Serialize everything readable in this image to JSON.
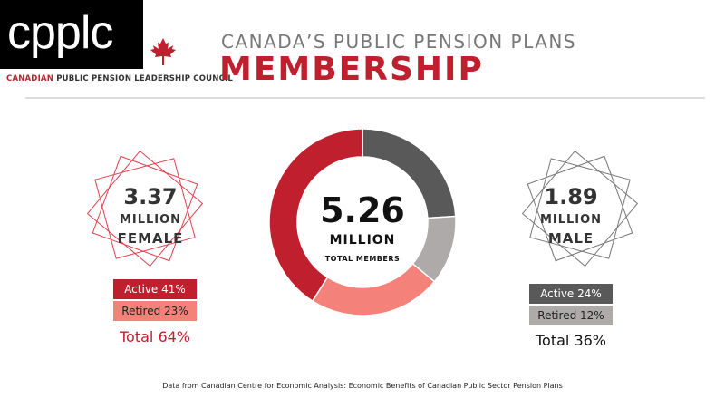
{
  "logo": {
    "text": "cpplc",
    "council_red": "CANADIAN",
    "council_rest": " PUBLIC PENSION LEADERSHIP COUNCIL"
  },
  "header": {
    "subtitle": "CANADA’S PUBLIC PENSION PLANS",
    "title": "MEMBERSHIP"
  },
  "female": {
    "value": "3.37",
    "unit": "MILLION",
    "label": "FEMALE",
    "active": "Active 41%",
    "retired": "Retired 23%",
    "total": "Total 64%"
  },
  "male": {
    "value": "1.89",
    "unit": "MILLION",
    "label": "MALE",
    "active": "Active 24%",
    "retired": "Retired 12%",
    "total": "Total 36%"
  },
  "center": {
    "value": "5.26",
    "unit": "MILLION",
    "label": "TOTAL MEMBERS"
  },
  "source": "Data from Canadian Centre for Economic Analysis: Economic Benefits of Canadian Public Sector Pension Plans",
  "colors": {
    "red": "#c0202e",
    "salmon": "#f4827a",
    "dark_grey": "#595959",
    "light_grey": "#aeaaaa"
  },
  "chart_data": {
    "type": "pie",
    "title": "Total members 5.26 million",
    "categories": [
      "Male Active",
      "Male Retired",
      "Female Retired",
      "Female Active"
    ],
    "values": [
      24,
      12,
      23,
      41
    ],
    "colors": [
      "#595959",
      "#aeaaaa",
      "#f4827a",
      "#c0202e"
    ]
  }
}
